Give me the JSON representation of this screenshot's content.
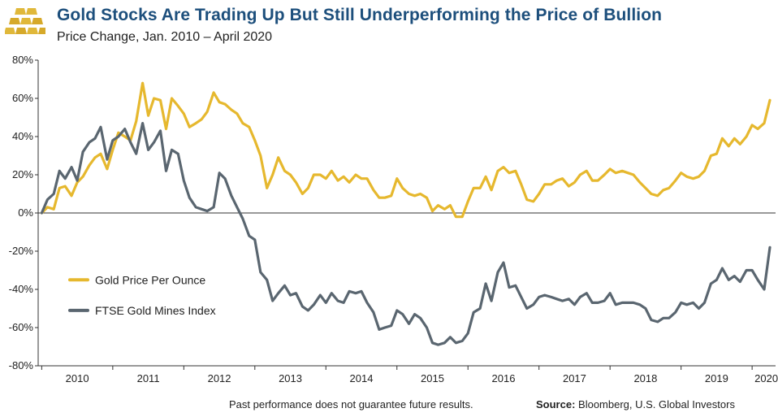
{
  "header": {
    "title": "Gold Stocks Are Trading Up But Still Underperforming the Price of Bullion",
    "subtitle": "Price Change, Jan. 2010 – April 2020"
  },
  "footer": {
    "disclaimer": "Past performance does not guarantee future results.",
    "source_label": "Source:",
    "source_text": "Bloomberg, U.S. Global Investors"
  },
  "colors": {
    "gold": "#e6b82e",
    "mines": "#5a6670",
    "title": "#1d4f7c",
    "logo_gold": "#e0b83a"
  },
  "chart_data": {
    "type": "line",
    "title": "Gold Stocks Are Trading Up But Still Underperforming the Price of Bullion",
    "subtitle": "Price Change, Jan. 2010 – April 2020",
    "xlabel": "",
    "ylabel": "",
    "x_range": [
      2009.95,
      2020.33
    ],
    "ylim": [
      -80,
      80
    ],
    "y_ticks": [
      80,
      60,
      40,
      20,
      0,
      -20,
      -40,
      -60,
      -80
    ],
    "y_tick_labels": [
      "80%",
      "60%",
      "40%",
      "20%",
      "0%",
      "-20%",
      "-40%",
      "-60%",
      "-80%"
    ],
    "x_ticks": [
      2010.5,
      2011.5,
      2012.5,
      2013.5,
      2014.5,
      2015.5,
      2016.5,
      2017.5,
      2018.5,
      2019.5,
      2020.2
    ],
    "x_tick_labels": [
      "2010",
      "2011",
      "2012",
      "2013",
      "2014",
      "2015",
      "2016",
      "2017",
      "2018",
      "2019",
      "2020"
    ],
    "grid": false,
    "legend_position": "left-middle",
    "series": [
      {
        "name": "Gold Price Per Ounce",
        "color": "#e6b82e",
        "points": [
          [
            2010.0,
            0
          ],
          [
            2010.08,
            3
          ],
          [
            2010.17,
            2
          ],
          [
            2010.25,
            13
          ],
          [
            2010.33,
            14
          ],
          [
            2010.42,
            9
          ],
          [
            2010.5,
            16
          ],
          [
            2010.58,
            19
          ],
          [
            2010.67,
            25
          ],
          [
            2010.75,
            29
          ],
          [
            2010.83,
            31
          ],
          [
            2010.92,
            23
          ],
          [
            2011.0,
            33
          ],
          [
            2011.08,
            42
          ],
          [
            2011.17,
            40
          ],
          [
            2011.25,
            38
          ],
          [
            2011.33,
            48
          ],
          [
            2011.42,
            68
          ],
          [
            2011.5,
            51
          ],
          [
            2011.58,
            60
          ],
          [
            2011.67,
            59
          ],
          [
            2011.75,
            44
          ],
          [
            2011.83,
            60
          ],
          [
            2011.92,
            56
          ],
          [
            2012.0,
            52
          ],
          [
            2012.08,
            45
          ],
          [
            2012.17,
            47
          ],
          [
            2012.25,
            49
          ],
          [
            2012.33,
            53
          ],
          [
            2012.42,
            63
          ],
          [
            2012.5,
            58
          ],
          [
            2012.58,
            57
          ],
          [
            2012.67,
            54
          ],
          [
            2012.75,
            52
          ],
          [
            2012.83,
            47
          ],
          [
            2012.92,
            45
          ],
          [
            2013.0,
            38
          ],
          [
            2013.08,
            30
          ],
          [
            2013.17,
            13
          ],
          [
            2013.25,
            20
          ],
          [
            2013.33,
            29
          ],
          [
            2013.42,
            22
          ],
          [
            2013.5,
            20
          ],
          [
            2013.58,
            16
          ],
          [
            2013.67,
            10
          ],
          [
            2013.75,
            13
          ],
          [
            2013.83,
            20
          ],
          [
            2013.92,
            20
          ],
          [
            2014.0,
            18
          ],
          [
            2014.08,
            22
          ],
          [
            2014.17,
            17
          ],
          [
            2014.25,
            19
          ],
          [
            2014.33,
            16
          ],
          [
            2014.42,
            20
          ],
          [
            2014.5,
            18
          ],
          [
            2014.58,
            18
          ],
          [
            2014.67,
            12
          ],
          [
            2014.75,
            8
          ],
          [
            2014.83,
            8
          ],
          [
            2014.92,
            9
          ],
          [
            2015.0,
            18
          ],
          [
            2015.08,
            13
          ],
          [
            2015.17,
            10
          ],
          [
            2015.25,
            9
          ],
          [
            2015.33,
            10
          ],
          [
            2015.42,
            8
          ],
          [
            2015.5,
            1
          ],
          [
            2015.58,
            4
          ],
          [
            2015.67,
            2
          ],
          [
            2015.75,
            4
          ],
          [
            2015.83,
            -2
          ],
          [
            2015.92,
            -2
          ],
          [
            2016.0,
            6
          ],
          [
            2016.08,
            13
          ],
          [
            2016.17,
            13
          ],
          [
            2016.25,
            19
          ],
          [
            2016.33,
            12
          ],
          [
            2016.42,
            22
          ],
          [
            2016.5,
            24
          ],
          [
            2016.58,
            21
          ],
          [
            2016.67,
            22
          ],
          [
            2016.75,
            15
          ],
          [
            2016.83,
            7
          ],
          [
            2016.92,
            6
          ],
          [
            2017.0,
            10
          ],
          [
            2017.08,
            15
          ],
          [
            2017.17,
            15
          ],
          [
            2017.25,
            17
          ],
          [
            2017.33,
            18
          ],
          [
            2017.42,
            14
          ],
          [
            2017.5,
            16
          ],
          [
            2017.58,
            20
          ],
          [
            2017.67,
            22
          ],
          [
            2017.75,
            17
          ],
          [
            2017.83,
            17
          ],
          [
            2017.92,
            20
          ],
          [
            2018.0,
            23
          ],
          [
            2018.08,
            21
          ],
          [
            2018.17,
            22
          ],
          [
            2018.25,
            21
          ],
          [
            2018.33,
            20
          ],
          [
            2018.42,
            16
          ],
          [
            2018.5,
            13
          ],
          [
            2018.58,
            10
          ],
          [
            2018.67,
            9
          ],
          [
            2018.75,
            12
          ],
          [
            2018.83,
            13
          ],
          [
            2018.92,
            17
          ],
          [
            2019.0,
            21
          ],
          [
            2019.08,
            19
          ],
          [
            2019.17,
            18
          ],
          [
            2019.25,
            19
          ],
          [
            2019.33,
            22
          ],
          [
            2019.42,
            30
          ],
          [
            2019.5,
            31
          ],
          [
            2019.58,
            39
          ],
          [
            2019.67,
            35
          ],
          [
            2019.75,
            39
          ],
          [
            2019.83,
            36
          ],
          [
            2019.92,
            40
          ],
          [
            2020.0,
            46
          ],
          [
            2020.08,
            44
          ],
          [
            2020.17,
            47
          ],
          [
            2020.25,
            59
          ]
        ]
      },
      {
        "name": "FTSE Gold Mines Index",
        "color": "#5a6670",
        "points": [
          [
            2010.0,
            0
          ],
          [
            2010.08,
            7
          ],
          [
            2010.17,
            10
          ],
          [
            2010.25,
            22
          ],
          [
            2010.33,
            18
          ],
          [
            2010.42,
            24
          ],
          [
            2010.5,
            17
          ],
          [
            2010.58,
            32
          ],
          [
            2010.67,
            37
          ],
          [
            2010.75,
            39
          ],
          [
            2010.83,
            45
          ],
          [
            2010.92,
            28
          ],
          [
            2011.0,
            38
          ],
          [
            2011.08,
            40
          ],
          [
            2011.17,
            44
          ],
          [
            2011.25,
            37
          ],
          [
            2011.33,
            31
          ],
          [
            2011.42,
            47
          ],
          [
            2011.5,
            33
          ],
          [
            2011.58,
            37
          ],
          [
            2011.67,
            43
          ],
          [
            2011.75,
            22
          ],
          [
            2011.83,
            33
          ],
          [
            2011.92,
            31
          ],
          [
            2012.0,
            17
          ],
          [
            2012.08,
            8
          ],
          [
            2012.17,
            3
          ],
          [
            2012.25,
            2
          ],
          [
            2012.33,
            1
          ],
          [
            2012.42,
            3
          ],
          [
            2012.5,
            21
          ],
          [
            2012.58,
            18
          ],
          [
            2012.67,
            9
          ],
          [
            2012.75,
            3
          ],
          [
            2012.83,
            -3
          ],
          [
            2012.92,
            -12
          ],
          [
            2013.0,
            -14
          ],
          [
            2013.08,
            -31
          ],
          [
            2013.17,
            -35
          ],
          [
            2013.25,
            -46
          ],
          [
            2013.33,
            -42
          ],
          [
            2013.42,
            -38
          ],
          [
            2013.5,
            -43
          ],
          [
            2013.58,
            -42
          ],
          [
            2013.67,
            -49
          ],
          [
            2013.75,
            -51
          ],
          [
            2013.83,
            -48
          ],
          [
            2013.92,
            -43
          ],
          [
            2014.0,
            -47
          ],
          [
            2014.08,
            -42
          ],
          [
            2014.17,
            -46
          ],
          [
            2014.25,
            -47
          ],
          [
            2014.33,
            -41
          ],
          [
            2014.42,
            -42
          ],
          [
            2014.5,
            -41
          ],
          [
            2014.58,
            -47
          ],
          [
            2014.67,
            -52
          ],
          [
            2014.75,
            -61
          ],
          [
            2014.83,
            -60
          ],
          [
            2014.92,
            -59
          ],
          [
            2015.0,
            -51
          ],
          [
            2015.08,
            -53
          ],
          [
            2015.17,
            -58
          ],
          [
            2015.25,
            -53
          ],
          [
            2015.33,
            -55
          ],
          [
            2015.42,
            -60
          ],
          [
            2015.5,
            -68
          ],
          [
            2015.58,
            -69
          ],
          [
            2015.67,
            -68
          ],
          [
            2015.75,
            -65
          ],
          [
            2015.83,
            -68
          ],
          [
            2015.92,
            -67
          ],
          [
            2016.0,
            -63
          ],
          [
            2016.08,
            -52
          ],
          [
            2016.17,
            -50
          ],
          [
            2016.25,
            -37
          ],
          [
            2016.33,
            -46
          ],
          [
            2016.42,
            -31
          ],
          [
            2016.5,
            -26
          ],
          [
            2016.58,
            -39
          ],
          [
            2016.67,
            -38
          ],
          [
            2016.75,
            -44
          ],
          [
            2016.83,
            -50
          ],
          [
            2016.92,
            -48
          ],
          [
            2017.0,
            -44
          ],
          [
            2017.08,
            -43
          ],
          [
            2017.17,
            -44
          ],
          [
            2017.25,
            -45
          ],
          [
            2017.33,
            -46
          ],
          [
            2017.42,
            -45
          ],
          [
            2017.5,
            -48
          ],
          [
            2017.58,
            -44
          ],
          [
            2017.67,
            -42
          ],
          [
            2017.75,
            -47
          ],
          [
            2017.83,
            -47
          ],
          [
            2017.92,
            -46
          ],
          [
            2018.0,
            -42
          ],
          [
            2018.08,
            -48
          ],
          [
            2018.17,
            -47
          ],
          [
            2018.25,
            -47
          ],
          [
            2018.33,
            -47
          ],
          [
            2018.42,
            -48
          ],
          [
            2018.5,
            -50
          ],
          [
            2018.58,
            -56
          ],
          [
            2018.67,
            -57
          ],
          [
            2018.75,
            -55
          ],
          [
            2018.83,
            -55
          ],
          [
            2018.92,
            -52
          ],
          [
            2019.0,
            -47
          ],
          [
            2019.08,
            -48
          ],
          [
            2019.17,
            -47
          ],
          [
            2019.25,
            -50
          ],
          [
            2019.33,
            -47
          ],
          [
            2019.42,
            -37
          ],
          [
            2019.5,
            -35
          ],
          [
            2019.58,
            -29
          ],
          [
            2019.67,
            -35
          ],
          [
            2019.75,
            -33
          ],
          [
            2019.83,
            -36
          ],
          [
            2019.92,
            -30
          ],
          [
            2020.0,
            -30
          ],
          [
            2020.08,
            -35
          ],
          [
            2020.17,
            -40
          ],
          [
            2020.25,
            -18
          ]
        ]
      }
    ]
  }
}
